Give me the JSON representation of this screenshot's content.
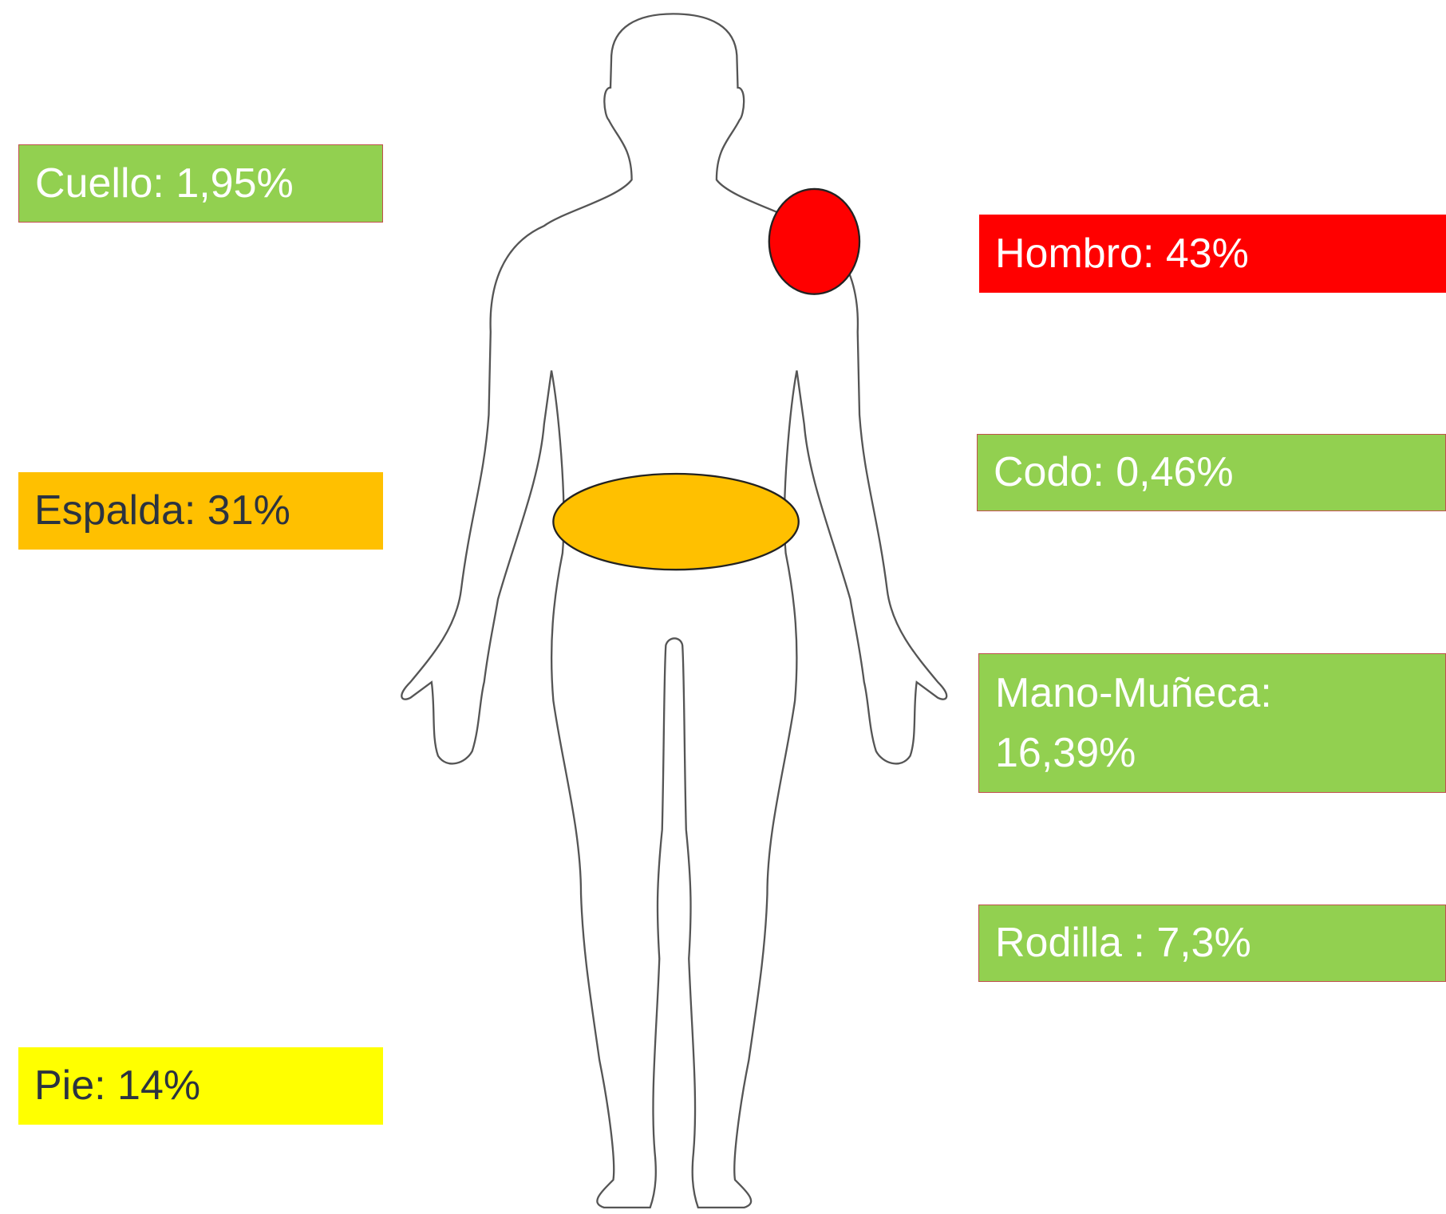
{
  "labels": [
    {
      "lines": [
        "Cuello: 1,95%"
      ]
    },
    {
      "lines": [
        "Espalda: 31%"
      ]
    },
    {
      "lines": [
        "Pie: 14%"
      ]
    },
    {
      "lines": [
        "Hombro: 43%"
      ]
    },
    {
      "lines": [
        "Codo: 0,46%"
      ]
    },
    {
      "lines": [
        "Mano-Muñeca:",
        "16,39%"
      ]
    },
    {
      "lines": [
        "Rodilla : 7,3%"
      ]
    }
  ]
}
